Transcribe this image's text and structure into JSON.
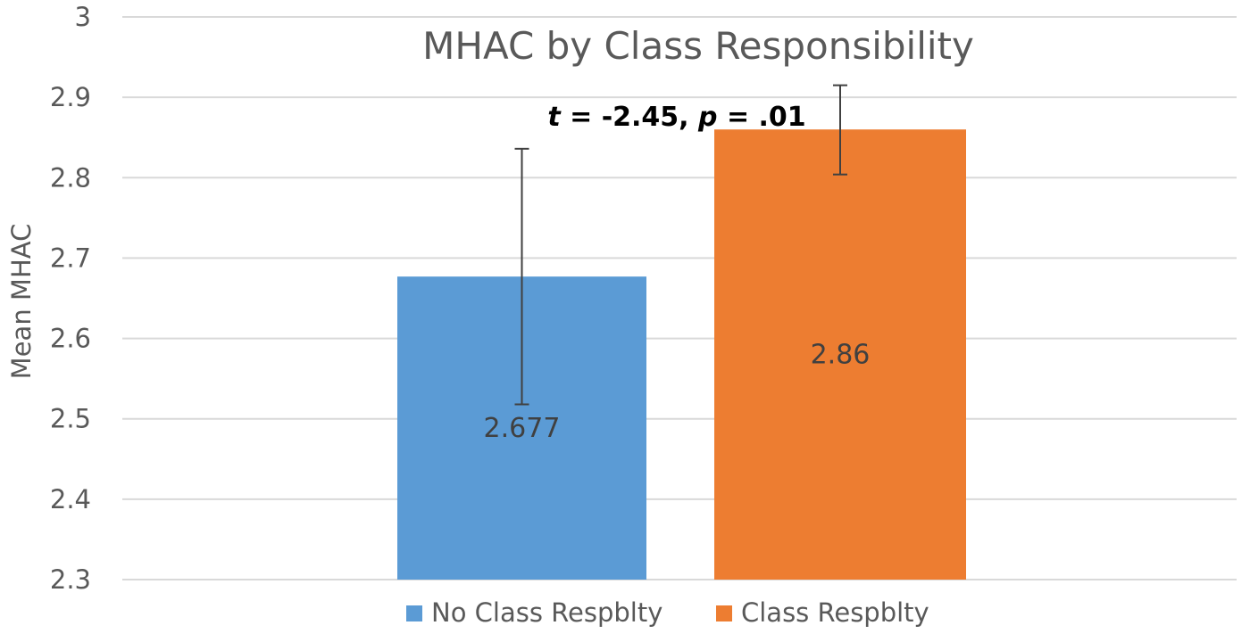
{
  "colors": {
    "series_no": "#5b9bd5",
    "series_yes": "#ed7d31",
    "grid": "#d9d9d9",
    "text": "#595959",
    "error_bar": "#404040"
  },
  "chart_data": {
    "type": "bar",
    "title": "MHAC by Class Responsibility",
    "xlabel": "",
    "ylabel": "Mean MHAC",
    "ylim": [
      2.3,
      3.0
    ],
    "yticks": [
      2.3,
      2.4,
      2.5,
      2.6,
      2.7,
      2.8,
      2.9,
      3
    ],
    "ytick_labels": [
      "2.3",
      "2.4",
      "2.5",
      "2.6",
      "2.7",
      "2.8",
      "2.9",
      "3"
    ],
    "grid": true,
    "legend_position": "bottom",
    "series": [
      {
        "name": "No Class Respblty",
        "value": 2.677,
        "label": "2.677",
        "error_low": 2.518,
        "error_high": 2.836,
        "color": "#5b9bd5"
      },
      {
        "name": "Class Respblty",
        "value": 2.86,
        "label": "2.86",
        "error_low": 2.804,
        "error_high": 2.915,
        "color": "#ed7d31"
      }
    ],
    "annotation": {
      "t_symbol": "t",
      "t_value": " = -2.45, ",
      "p_symbol": "p",
      "p_value": " = .01"
    }
  }
}
